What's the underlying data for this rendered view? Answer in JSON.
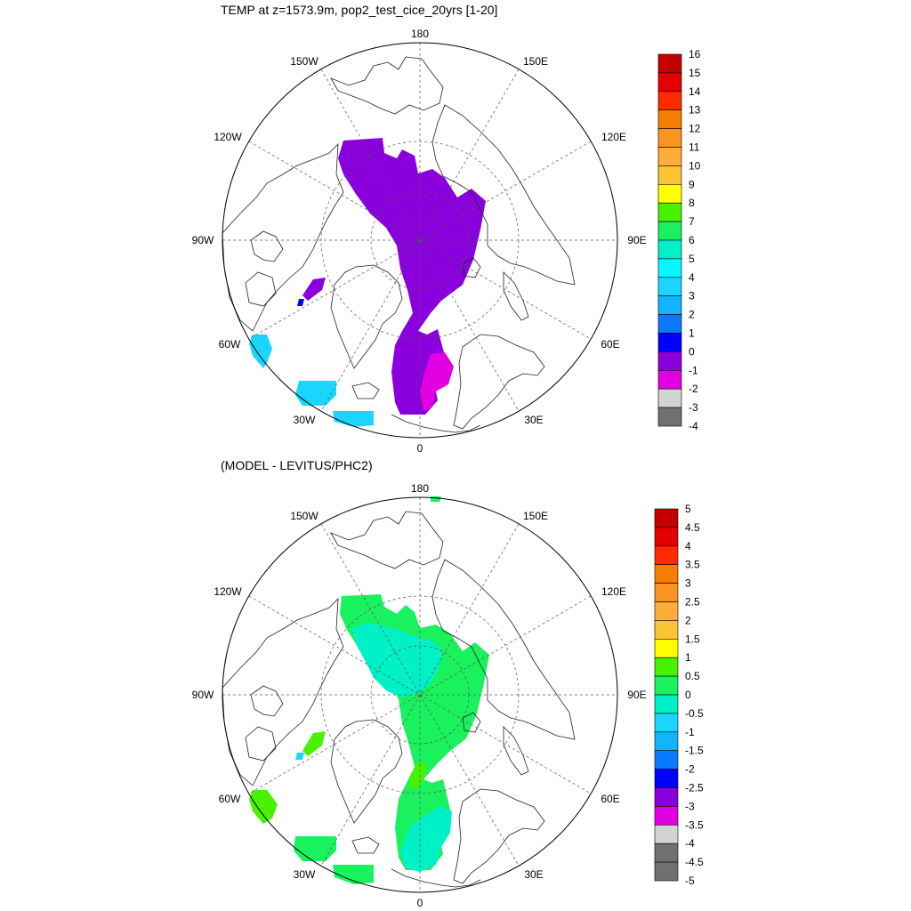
{
  "panels": [
    {
      "id": "top",
      "title": "TEMP at z=1573.9m, pop2_test_cice_20yrs [1-20]",
      "lon_labels": [
        "180",
        "150E",
        "120E",
        "90E",
        "60E",
        "30E",
        "0",
        "30W",
        "60W",
        "90W",
        "120W",
        "150W"
      ],
      "colorbar": {
        "labels": [
          "16",
          "15",
          "14",
          "13",
          "12",
          "11",
          "10",
          "9",
          "8",
          "7",
          "6",
          "5",
          "4",
          "3",
          "2",
          "1",
          "0",
          "-1",
          "-2",
          "-3",
          "-4"
        ],
        "colors": [
          "#c40000",
          "#e20000",
          "#ff2a00",
          "#f57d00",
          "#fa9320",
          "#fdad3a",
          "#fcc332",
          "#ffff00",
          "#48f200",
          "#19f15e",
          "#00f0c8",
          "#00faff",
          "#1ad6ff",
          "#12b4ff",
          "#0a78ff",
          "#0000ff",
          "#8a00dc",
          "#e100e1",
          "#d2d2d2",
          "#707070"
        ]
      }
    },
    {
      "id": "bottom",
      "title": "(MODEL - LEVITUS/PHC2)",
      "lon_labels": [
        "180",
        "150E",
        "120E",
        "90E",
        "60E",
        "30E",
        "0",
        "30W",
        "60W",
        "90W",
        "120W",
        "150W"
      ],
      "colorbar": {
        "labels": [
          "5",
          "4.5",
          "4",
          "3.5",
          "3",
          "2.5",
          "2",
          "1.5",
          "1",
          "0.5",
          "0",
          "-0.5",
          "-1",
          "-1.5",
          "-2",
          "-2.5",
          "-3",
          "-3.5",
          "-4",
          "-4.5",
          "-5"
        ],
        "colors": [
          "#c40000",
          "#e20000",
          "#ff2a00",
          "#f57d00",
          "#fa9320",
          "#fdad3a",
          "#fcc332",
          "#ffff00",
          "#48f200",
          "#19f15e",
          "#00f0c8",
          "#1ad6ff",
          "#12b4ff",
          "#0a78ff",
          "#0000ff",
          "#8a00dc",
          "#e100e1",
          "#d2d2d2",
          "#707070",
          "#707070"
        ]
      }
    }
  ],
  "fill_colors": {
    "top_main": "#8a00dc",
    "top_pink": "#e100e1",
    "top_cyan": "#1ad6ff",
    "top_blue": "#0000ff",
    "bottom_green": "#19f15e",
    "bottom_cyan": "#00f0c8",
    "bottom_lime": "#48f200",
    "bottom_blue": "#1ad6ff"
  }
}
